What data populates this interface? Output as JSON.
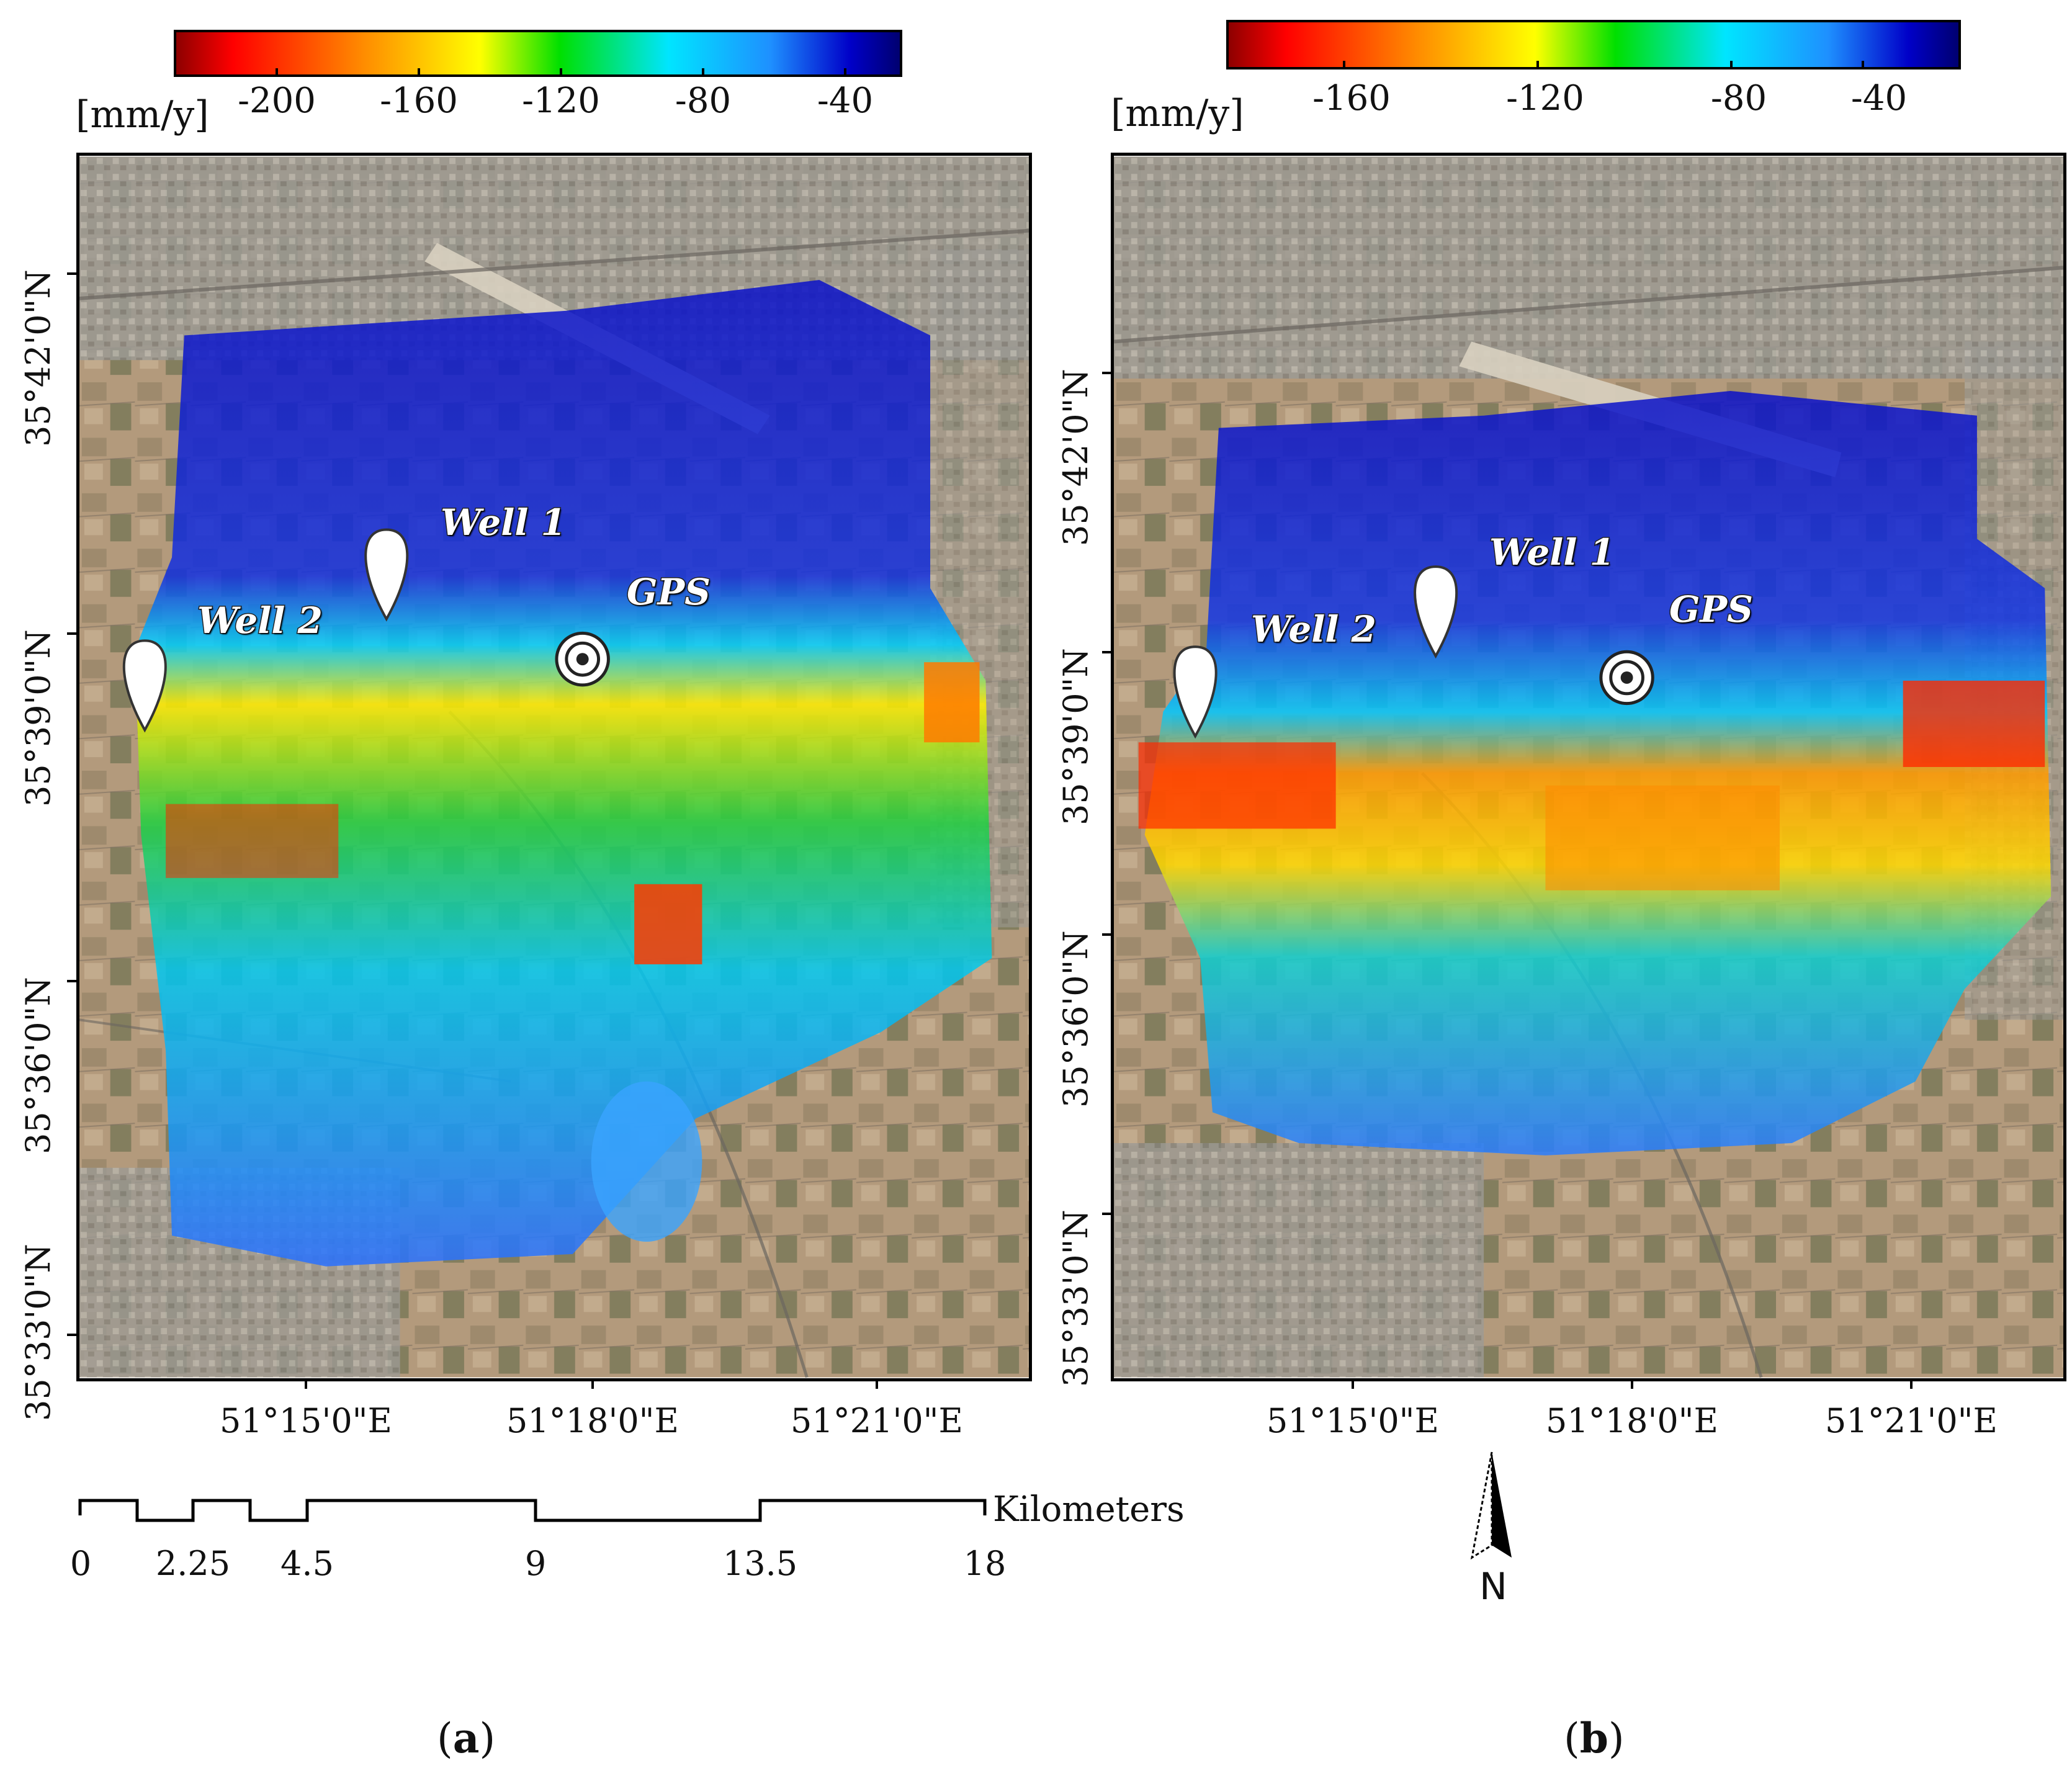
{
  "unit_label": "[mm/y]",
  "panels": [
    {
      "id": "a",
      "caption_open": "(",
      "caption_letter": "a",
      "caption_close": ")",
      "colorbar_ticks": [
        "-200",
        "-160",
        "-120",
        "-80",
        "-40"
      ],
      "lat_labels": [
        "35°42'0\"N",
        "35°39'0\"N",
        "35°36'0\"N",
        "35°33'0\"N"
      ],
      "lon_labels": [
        "51°15'0\"E",
        "51°18'0\"E",
        "51°21'0\"E"
      ],
      "well1": "Well 1",
      "well2": "Well 2",
      "gps": "GPS"
    },
    {
      "id": "b",
      "caption_open": "(",
      "caption_letter": "b",
      "caption_close": ")",
      "colorbar_ticks": [
        "-160",
        "-120",
        "-80",
        "-40"
      ],
      "lat_labels": [
        "35°42'0\"N",
        "35°39'0\"N",
        "35°36'0\"N",
        "35°33'0\"N"
      ],
      "lon_labels": [
        "51°15'0\"E",
        "51°18'0\"E",
        "51°21'0\"E"
      ],
      "well1": "Well 1",
      "well2": "Well 2",
      "gps": "GPS"
    }
  ],
  "scale_bar": {
    "unit": "Kilometers",
    "ticks": [
      "0",
      "2.25",
      "4.5",
      "9",
      "13.5",
      "18"
    ]
  },
  "north_arrow": {
    "label": "N"
  },
  "colors": {
    "colormap": [
      "#8b0000",
      "#ff0000",
      "#ff8c00",
      "#ffff00",
      "#00e000",
      "#00e5ff",
      "#1e90ff",
      "#0000c8",
      "#00006e"
    ],
    "imagery_base": "#b39a7c"
  }
}
